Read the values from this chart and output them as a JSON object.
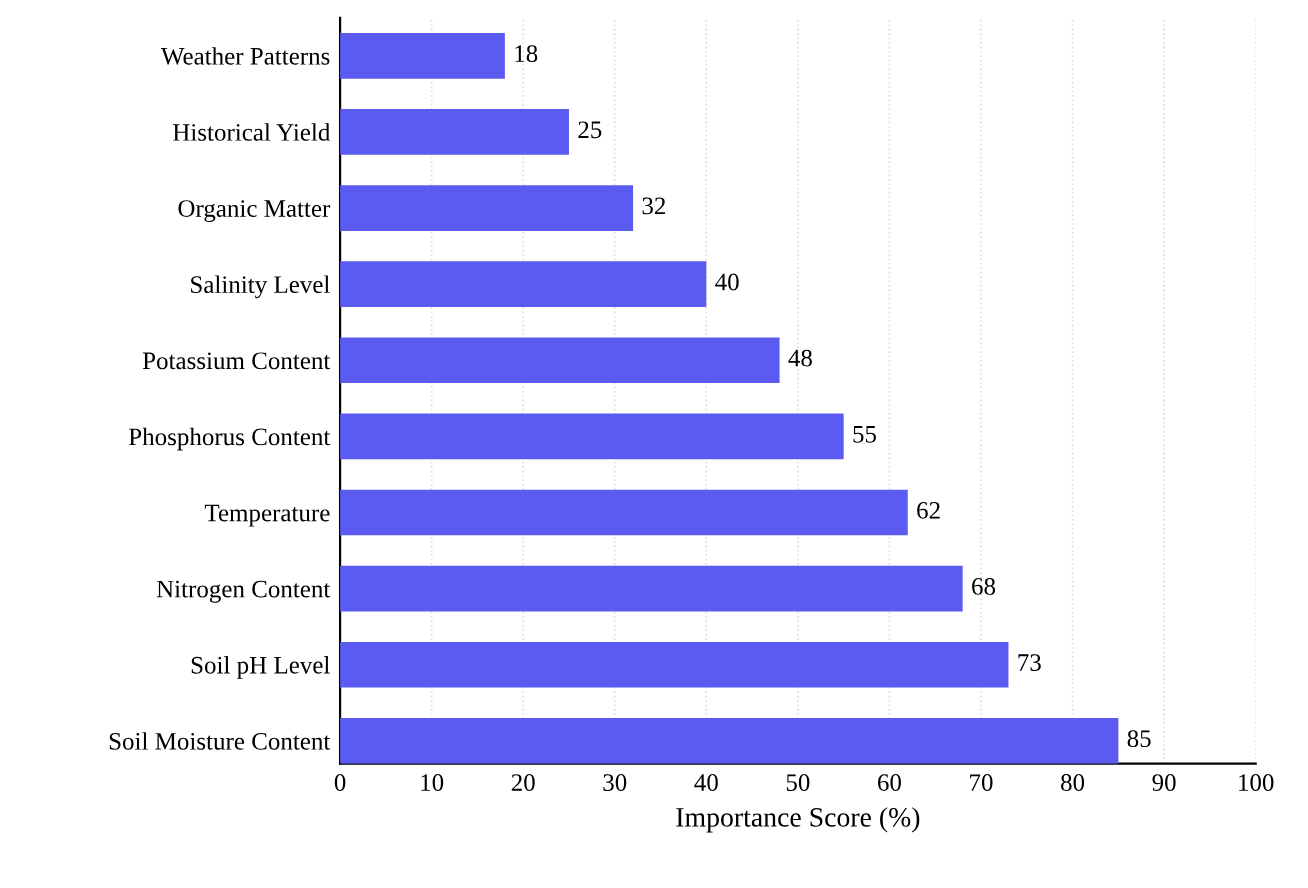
{
  "chart_data": {
    "type": "bar",
    "orientation": "horizontal",
    "xlabel": "Importance Score (%)",
    "categories": [
      "Weather Patterns",
      "Historical Yield",
      "Organic Matter",
      "Salinity Level",
      "Potassium Content",
      "Phosphorus Content",
      "Temperature",
      "Nitrogen Content",
      "Soil pH Level",
      "Soil Moisture Content"
    ],
    "values": [
      18,
      25,
      32,
      40,
      48,
      55,
      62,
      68,
      73,
      85
    ],
    "color": "#5b5bf2",
    "data_labels": true,
    "xlim": [
      0,
      100
    ],
    "xticks": [
      0,
      10,
      20,
      30,
      40,
      50,
      60,
      70,
      80,
      90,
      100
    ],
    "grid": "x"
  }
}
